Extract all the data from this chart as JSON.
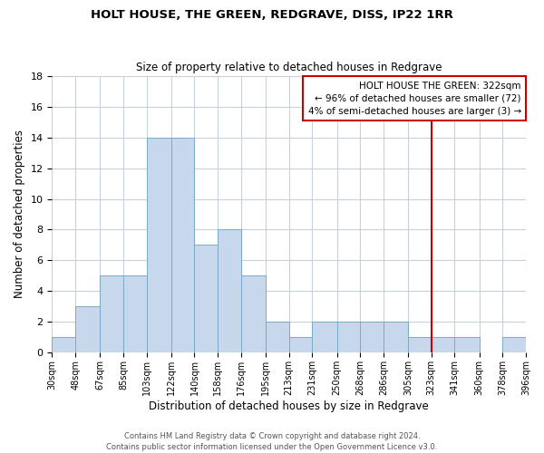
{
  "title": "HOLT HOUSE, THE GREEN, REDGRAVE, DISS, IP22 1RR",
  "subtitle": "Size of property relative to detached houses in Redgrave",
  "xlabel": "Distribution of detached houses by size in Redgrave",
  "ylabel": "Number of detached properties",
  "bin_edges": [
    30,
    48,
    67,
    85,
    103,
    122,
    140,
    158,
    176,
    195,
    213,
    231,
    250,
    268,
    286,
    305,
    323,
    341,
    360,
    378,
    396
  ],
  "bin_labels": [
    "30sqm",
    "48sqm",
    "67sqm",
    "85sqm",
    "103sqm",
    "122sqm",
    "140sqm",
    "158sqm",
    "176sqm",
    "195sqm",
    "213sqm",
    "231sqm",
    "250sqm",
    "268sqm",
    "286sqm",
    "305sqm",
    "323sqm",
    "341sqm",
    "360sqm",
    "378sqm",
    "396sqm"
  ],
  "counts": [
    1,
    3,
    5,
    5,
    14,
    14,
    7,
    8,
    5,
    2,
    1,
    2,
    2,
    2,
    2,
    1,
    1,
    1,
    0,
    1
  ],
  "bar_color": "#c8d8ec",
  "bar_edge_color": "#7aaac8",
  "vline_x": 323,
  "vline_color": "#cc0000",
  "ylim": [
    0,
    18
  ],
  "yticks": [
    0,
    2,
    4,
    6,
    8,
    10,
    12,
    14,
    16,
    18
  ],
  "annotation_title": "HOLT HOUSE THE GREEN: 322sqm",
  "annotation_line1": "← 96% of detached houses are smaller (72)",
  "annotation_line2": "4% of semi-detached houses are larger (3) →",
  "annotation_box_color": "#ffffff",
  "annotation_box_edge": "#cc0000",
  "footer_line1": "Contains HM Land Registry data © Crown copyright and database right 2024.",
  "footer_line2": "Contains public sector information licensed under the Open Government Licence v3.0.",
  "background_color": "#ffffff",
  "grid_color": "#c8d0dc"
}
